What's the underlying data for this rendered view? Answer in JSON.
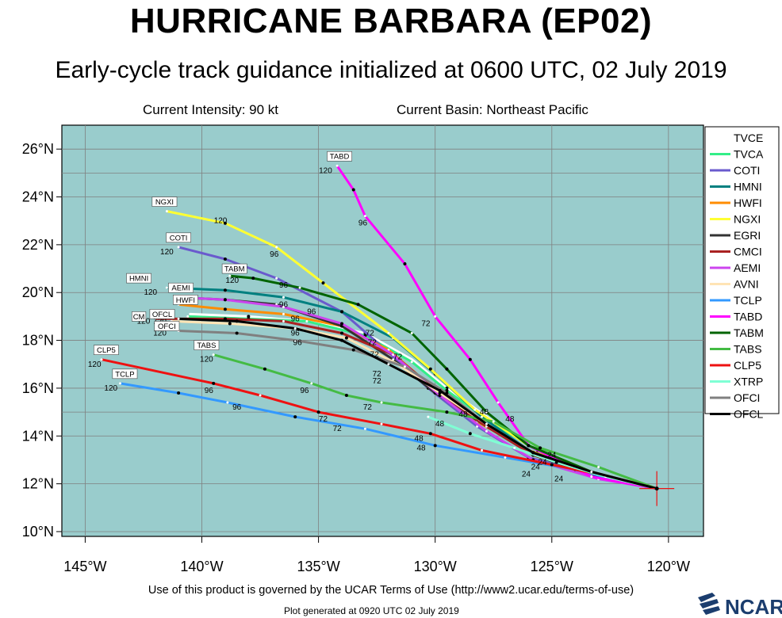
{
  "header": {
    "title": "HURRICANE BARBARA (EP02)",
    "subtitle": "Early-cycle track guidance initialized at 0600 UTC, 02 July 2019",
    "current_intensity": "Current Intensity: 90 kt",
    "current_basin": "Current Basin: Northeast Pacific"
  },
  "footer": {
    "terms": "Use of this product is governed by the UCAR Terms of Use (http://www2.ucar.edu/terms-of-use)",
    "generated": "Plot generated at 0920 UTC   02 July 2019",
    "logo_text": "NCAR"
  },
  "map": {
    "xlim": [
      -146.0,
      -118.5
    ],
    "ylim": [
      9.8,
      27.0
    ],
    "lon_ticks": [
      -145,
      -140,
      -135,
      -130,
      -125,
      -120
    ],
    "lon_tick_labels": [
      "145°W",
      "140°W",
      "135°W",
      "130°W",
      "125°W",
      "120°W"
    ],
    "lat_ticks": [
      10,
      12,
      14,
      16,
      18,
      20,
      22,
      24,
      26
    ],
    "lat_tick_labels": [
      "10°N",
      "12°N",
      "14°N",
      "16°N",
      "18°N",
      "20°N",
      "22°N",
      "24°N",
      "26°N"
    ],
    "initial_position": [
      -120.5,
      11.8
    ],
    "ocean_color": "#99cccc",
    "grid_color": "#808080"
  },
  "chart_data": {
    "type": "line",
    "xlabel": "",
    "ylabel": "",
    "legend_position": "right",
    "series": [
      {
        "name": "TVCE",
        "color": "#ffffff",
        "points": [
          [
            -120.5,
            11.8
          ],
          [
            -123.3,
            12.5
          ],
          [
            -125.6,
            13.4
          ],
          [
            -127.5,
            14.6
          ],
          [
            -129.5,
            16.0
          ],
          [
            -131.0,
            17.2
          ],
          [
            -133.0,
            18.3
          ],
          [
            -135.5,
            18.8
          ],
          [
            -138.0,
            19.0
          ],
          [
            -140.5,
            19.1
          ]
        ]
      },
      {
        "name": "TVCA",
        "color": "#33ee88",
        "points": [
          [
            -120.5,
            11.8
          ],
          [
            -123.3,
            12.5
          ],
          [
            -125.6,
            13.4
          ],
          [
            -127.5,
            14.5
          ],
          [
            -129.5,
            15.9
          ],
          [
            -131.0,
            17.1
          ],
          [
            -133.0,
            18.2
          ],
          [
            -135.5,
            18.8
          ],
          [
            -138.0,
            18.9
          ],
          [
            -140.6,
            19.0
          ]
        ]
      },
      {
        "name": "COTI",
        "color": "#6a5acd",
        "points": [
          [
            -120.5,
            11.8
          ],
          [
            -123.3,
            12.4
          ],
          [
            -126.0,
            13.1
          ],
          [
            -128.2,
            14.4
          ],
          [
            -130.3,
            16.0
          ],
          [
            -132.0,
            17.5
          ],
          [
            -134.0,
            19.2
          ],
          [
            -136.8,
            20.6
          ],
          [
            -139.0,
            21.4
          ],
          [
            -141.0,
            21.9
          ]
        ]
      },
      {
        "name": "HMNI",
        "color": "#008080",
        "points": [
          [
            -120.5,
            11.8
          ],
          [
            -123.3,
            12.5
          ],
          [
            -126.0,
            13.4
          ],
          [
            -128.0,
            14.8
          ],
          [
            -130.0,
            16.6
          ],
          [
            -131.8,
            18.1
          ],
          [
            -134.0,
            19.2
          ],
          [
            -136.5,
            19.8
          ],
          [
            -139.0,
            20.1
          ],
          [
            -141.5,
            20.2
          ]
        ]
      },
      {
        "name": "HWFI",
        "color": "#ff8c00",
        "points": [
          [
            -120.5,
            11.8
          ],
          [
            -123.3,
            12.5
          ],
          [
            -126.0,
            13.4
          ],
          [
            -128.2,
            14.6
          ],
          [
            -130.2,
            16.1
          ],
          [
            -132.0,
            17.6
          ],
          [
            -134.0,
            18.6
          ],
          [
            -136.5,
            19.1
          ],
          [
            -139.0,
            19.3
          ],
          [
            -141.0,
            19.5
          ]
        ]
      },
      {
        "name": "NGXI",
        "color": "#ffff33",
        "points": [
          [
            -120.5,
            11.8
          ],
          [
            -123.3,
            12.5
          ],
          [
            -126.0,
            13.6
          ],
          [
            -128.3,
            15.1
          ],
          [
            -130.2,
            16.8
          ],
          [
            -132.0,
            18.3
          ],
          [
            -134.8,
            20.4
          ],
          [
            -136.8,
            21.9
          ],
          [
            -139.0,
            22.9
          ],
          [
            -141.5,
            23.4
          ]
        ]
      },
      {
        "name": "EGRI",
        "color": "#333333",
        "points": [
          [
            -120.5,
            11.8
          ],
          [
            -123.3,
            12.4
          ],
          [
            -125.8,
            13.2
          ],
          [
            -127.8,
            14.4
          ],
          [
            -130.0,
            15.8
          ],
          [
            -131.8,
            17.2
          ],
          [
            -134.0,
            18.6
          ],
          [
            -136.8,
            19.5
          ],
          [
            -139.0,
            19.7
          ],
          [
            -141.0,
            19.8
          ]
        ]
      },
      {
        "name": "CMCI",
        "color": "#aa2222",
        "points": [
          [
            -120.5,
            11.8
          ],
          [
            -123.3,
            12.5
          ],
          [
            -125.8,
            13.2
          ],
          [
            -127.8,
            14.4
          ],
          [
            -129.8,
            15.8
          ],
          [
            -131.8,
            17.4
          ],
          [
            -134.0,
            18.3
          ],
          [
            -136.5,
            18.8
          ],
          [
            -139.0,
            18.9
          ],
          [
            -142.0,
            18.9
          ]
        ]
      },
      {
        "name": "AEMI",
        "color": "#cc44ee",
        "points": [
          [
            -120.5,
            11.8
          ],
          [
            -123.0,
            12.2
          ],
          [
            -125.8,
            13.0
          ],
          [
            -127.8,
            14.2
          ],
          [
            -129.8,
            15.7
          ],
          [
            -131.8,
            17.4
          ],
          [
            -134.0,
            18.7
          ],
          [
            -136.5,
            19.4
          ],
          [
            -139.0,
            19.7
          ],
          [
            -141.0,
            19.8
          ]
        ]
      },
      {
        "name": "AVNI",
        "color": "#ffe4b5",
        "points": [
          [
            -120.5,
            11.8
          ],
          [
            -123.3,
            12.5
          ],
          [
            -125.8,
            13.3
          ],
          [
            -127.8,
            14.5
          ],
          [
            -129.8,
            15.8
          ],
          [
            -131.6,
            17.0
          ],
          [
            -133.8,
            18.1
          ],
          [
            -136.0,
            18.5
          ],
          [
            -138.8,
            18.7
          ],
          [
            -141.3,
            18.8
          ]
        ]
      },
      {
        "name": "TCLP",
        "color": "#3399ff",
        "points": [
          [
            -120.5,
            11.8
          ],
          [
            -122.0,
            12.1
          ],
          [
            -124.0,
            12.6
          ],
          [
            -127.0,
            13.1
          ],
          [
            -130.0,
            13.6
          ],
          [
            -133.0,
            14.3
          ],
          [
            -136.0,
            14.8
          ],
          [
            -138.9,
            15.4
          ],
          [
            -141.0,
            15.8
          ],
          [
            -143.5,
            16.2
          ]
        ]
      },
      {
        "name": "TABD",
        "color": "#ff00ff",
        "points": [
          [
            -120.5,
            11.8
          ],
          [
            -123.3,
            12.3
          ],
          [
            -126.0,
            13.6
          ],
          [
            -127.3,
            15.4
          ],
          [
            -128.5,
            17.2
          ],
          [
            -130.0,
            19.0
          ],
          [
            -131.3,
            21.2
          ],
          [
            -133.0,
            23.2
          ],
          [
            -133.5,
            24.3
          ],
          [
            -134.2,
            25.3
          ]
        ]
      },
      {
        "name": "TABM",
        "color": "#006400",
        "points": [
          [
            -120.5,
            11.8
          ],
          [
            -123.3,
            12.5
          ],
          [
            -126.0,
            13.6
          ],
          [
            -127.8,
            15.0
          ],
          [
            -129.5,
            16.8
          ],
          [
            -131.0,
            18.3
          ],
          [
            -133.3,
            19.5
          ],
          [
            -135.8,
            20.2
          ],
          [
            -137.8,
            20.6
          ],
          [
            -138.8,
            20.7
          ]
        ]
      },
      {
        "name": "TABS",
        "color": "#44bb44",
        "points": [
          [
            -120.5,
            11.8
          ],
          [
            -123.0,
            12.7
          ],
          [
            -125.5,
            13.5
          ],
          [
            -127.5,
            14.6
          ],
          [
            -129.5,
            15.0
          ],
          [
            -132.3,
            15.4
          ],
          [
            -133.8,
            15.7
          ],
          [
            -135.3,
            16.2
          ],
          [
            -137.3,
            16.8
          ],
          [
            -139.5,
            17.4
          ]
        ]
      },
      {
        "name": "CLP5",
        "color": "#ee1111",
        "points": [
          [
            -120.5,
            11.8
          ],
          [
            -122.5,
            12.3
          ],
          [
            -125.0,
            12.8
          ],
          [
            -128.0,
            13.4
          ],
          [
            -130.2,
            14.1
          ],
          [
            -132.3,
            14.5
          ],
          [
            -135.0,
            15.0
          ],
          [
            -137.5,
            15.7
          ],
          [
            -139.5,
            16.2
          ],
          [
            -144.3,
            17.2
          ]
        ]
      },
      {
        "name": "XTRP",
        "color": "#7fffd4",
        "points": [
          [
            -120.5,
            11.8
          ],
          [
            -122.7,
            12.3
          ],
          [
            -124.8,
            12.9
          ],
          [
            -126.6,
            13.5
          ],
          [
            -128.5,
            14.1
          ],
          [
            -130.3,
            14.8
          ]
        ]
      },
      {
        "name": "OFCI",
        "color": "#808080",
        "points": [
          [
            -120.5,
            11.8
          ],
          [
            -123.3,
            12.5
          ],
          [
            -125.8,
            13.3
          ],
          [
            -127.8,
            14.5
          ],
          [
            -129.5,
            15.8
          ],
          [
            -131.3,
            16.9
          ],
          [
            -133.5,
            17.6
          ],
          [
            -136.0,
            18.0
          ],
          [
            -138.5,
            18.3
          ],
          [
            -141.0,
            18.4
          ]
        ]
      },
      {
        "name": "OFCL",
        "color": "#000000",
        "points": [
          [
            -120.5,
            11.8
          ],
          [
            -123.3,
            12.5
          ],
          [
            -125.8,
            13.3
          ],
          [
            -127.8,
            14.5
          ],
          [
            -129.8,
            15.9
          ],
          [
            -132.0,
            17.0
          ],
          [
            -134.0,
            18.0
          ],
          [
            -136.0,
            18.5
          ],
          [
            -138.5,
            18.8
          ],
          [
            -141.0,
            18.9
          ]
        ]
      }
    ],
    "forecast_hour_labels": [
      {
        "text": "120",
        "lon": -141.5,
        "lat": 21.6
      },
      {
        "text": "120",
        "lon": -139.2,
        "lat": 22.9
      },
      {
        "text": "120",
        "lon": -142.2,
        "lat": 19.9
      },
      {
        "text": "120",
        "lon": -138.7,
        "lat": 20.4
      },
      {
        "text": "120",
        "lon": -134.7,
        "lat": 25.0
      },
      {
        "text": "120",
        "lon": -139.8,
        "lat": 17.1
      },
      {
        "text": "120",
        "lon": -144.6,
        "lat": 16.9
      },
      {
        "text": "120",
        "lon": -143.9,
        "lat": 15.9
      },
      {
        "text": "120",
        "lon": -141.8,
        "lat": 18.2
      },
      {
        "text": "120",
        "lon": -142.5,
        "lat": 18.7
      },
      {
        "text": "120",
        "lon": -141.8,
        "lat": 18.7
      },
      {
        "text": "96",
        "lon": -136.9,
        "lat": 21.5
      },
      {
        "text": "96",
        "lon": -133.1,
        "lat": 22.8
      },
      {
        "text": "96",
        "lon": -136.5,
        "lat": 20.2
      },
      {
        "text": "96",
        "lon": -136.5,
        "lat": 19.4
      },
      {
        "text": "96",
        "lon": -135.3,
        "lat": 19.1
      },
      {
        "text": "96",
        "lon": -136.0,
        "lat": 18.8
      },
      {
        "text": "96",
        "lon": -136.0,
        "lat": 18.2
      },
      {
        "text": "96",
        "lon": -135.9,
        "lat": 17.8
      },
      {
        "text": "96",
        "lon": -139.7,
        "lat": 15.8
      },
      {
        "text": "96",
        "lon": -138.5,
        "lat": 15.1
      },
      {
        "text": "96",
        "lon": -135.6,
        "lat": 15.8
      },
      {
        "text": "72",
        "lon": -130.4,
        "lat": 18.6
      },
      {
        "text": "72",
        "lon": -132.8,
        "lat": 18.2
      },
      {
        "text": "72",
        "lon": -132.7,
        "lat": 17.8
      },
      {
        "text": "72",
        "lon": -132.6,
        "lat": 17.3
      },
      {
        "text": "72",
        "lon": -131.6,
        "lat": 17.2
      },
      {
        "text": "72",
        "lon": -132.5,
        "lat": 16.5
      },
      {
        "text": "72",
        "lon": -132.5,
        "lat": 16.2
      },
      {
        "text": "72",
        "lon": -132.9,
        "lat": 15.1
      },
      {
        "text": "72",
        "lon": -134.8,
        "lat": 14.6
      },
      {
        "text": "72",
        "lon": -134.2,
        "lat": 14.2
      },
      {
        "text": "48",
        "lon": -129.8,
        "lat": 14.4
      },
      {
        "text": "48",
        "lon": -130.7,
        "lat": 13.8
      },
      {
        "text": "48",
        "lon": -130.6,
        "lat": 13.4
      },
      {
        "text": "48",
        "lon": -128.8,
        "lat": 14.8
      },
      {
        "text": "48",
        "lon": -126.8,
        "lat": 14.6
      },
      {
        "text": "48",
        "lon": -127.9,
        "lat": 14.9
      },
      {
        "text": "24",
        "lon": -125.0,
        "lat": 13.1
      },
      {
        "text": "24",
        "lon": -125.4,
        "lat": 12.8
      },
      {
        "text": "24",
        "lon": -125.7,
        "lat": 12.6
      },
      {
        "text": "24",
        "lon": -126.1,
        "lat": 12.3
      },
      {
        "text": "24",
        "lon": -124.7,
        "lat": 12.1
      }
    ],
    "model_tags": [
      {
        "text": "TABD",
        "lon": -134.1,
        "lat": 25.6
      },
      {
        "text": "NGXI",
        "lon": -141.6,
        "lat": 23.7
      },
      {
        "text": "COTI",
        "lon": -141.0,
        "lat": 22.2
      },
      {
        "text": "TABM",
        "lon": -138.6,
        "lat": 20.9
      },
      {
        "text": "HMNI",
        "lon": -142.7,
        "lat": 20.5
      },
      {
        "text": "AEMI",
        "lon": -140.9,
        "lat": 20.1
      },
      {
        "text": "HWFI",
        "lon": -140.7,
        "lat": 19.6
      },
      {
        "text": "OFCL",
        "lon": -141.7,
        "lat": 19.0
      },
      {
        "text": "OFCI",
        "lon": -141.5,
        "lat": 18.5
      },
      {
        "text": "CM",
        "lon": -142.7,
        "lat": 18.9
      },
      {
        "text": "TABS",
        "lon": -139.8,
        "lat": 17.7
      },
      {
        "text": "CLP5",
        "lon": -144.1,
        "lat": 17.5
      },
      {
        "text": "TCLP",
        "lon": -143.3,
        "lat": 16.5
      }
    ]
  }
}
